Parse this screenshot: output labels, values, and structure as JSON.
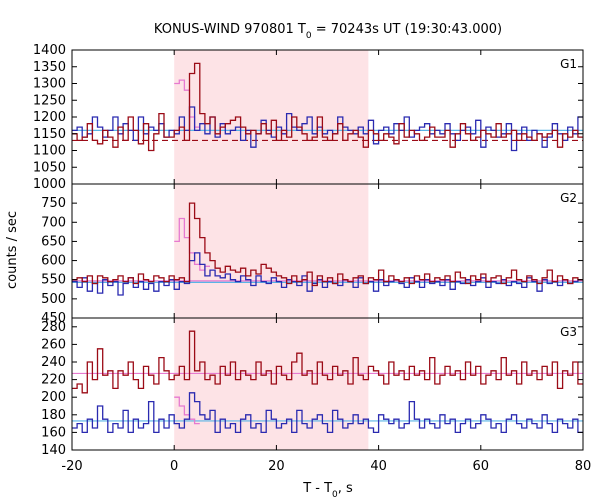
{
  "chart_data": {
    "type": "line",
    "title_main": "KONUS-WIND 970801 T",
    "title_sub": "0",
    "title_rest": " = 70243s UT (19:30:43.000)",
    "ylabel": "counts / sec",
    "xlabel_main": "T - T",
    "xlabel_sub": "0",
    "xlabel_rest": ", s",
    "xlim": [
      -20,
      80
    ],
    "x_ticks": [
      -20,
      0,
      20,
      40,
      60,
      80
    ],
    "shaded_interval": [
      0,
      38
    ],
    "colors": {
      "shade": "#fde3e6",
      "series_a": "#9b0b16",
      "series_b": "#2a2ab0",
      "pink": "#e67ad0",
      "cyan": "#5ab4e6"
    },
    "panels": [
      {
        "label": "G1",
        "ylim": [
          1000,
          1400
        ],
        "y_ticks": [
          1000,
          1050,
          1100,
          1150,
          1200,
          1250,
          1300,
          1350,
          1400
        ],
        "background_a": 1130,
        "background_b": 1160,
        "series": [
          {
            "values": [
              1150,
              1130,
              1140,
              1180,
              1130,
              1120,
              1160,
              1140,
              1110,
              1170,
              1130,
              1200,
              1160,
              1120,
              1180,
              1100,
              1150,
              1210,
              1140,
              1140,
              1160,
              1170,
              1130,
              1330,
              1360,
              1210,
              1180,
              1200,
              1150,
              1170,
              1180,
              1190,
              1200,
              1170,
              1150,
              1160,
              1150,
              1180,
              1150,
              1190,
              1130,
              1160,
              1140,
              1200,
              1170,
              1150,
              1130,
              1140,
              1200,
              1140,
              1130,
              1150,
              1180,
              1130,
              1150,
              1160,
              1140,
              1110,
              1160,
              1150,
              1130,
              1150,
              1140,
              1120,
              1180,
              1140,
              1160,
              1150,
              1130,
              1140,
              1170,
              1140,
              1140,
              1160,
              1110,
              1150,
              1180,
              1150,
              1130,
              1140,
              1160,
              1150,
              1140,
              1180,
              1140,
              1150,
              1160,
              1130,
              1150,
              1140,
              1130,
              1150,
              1140,
              1150,
              1160,
              1110,
              1150,
              1140,
              1160,
              1140
            ]
          },
          {
            "values": [
              1160,
              1170,
              1140,
              1150,
              1200,
              1170,
              1140,
              1160,
              1200,
              1150,
              1180,
              1160,
              1130,
              1200,
              1150,
              1170,
              1160,
              1180,
              1140,
              1160,
              1150,
              1200,
              1160,
              1230,
              1160,
              1180,
              1150,
              1200,
              1140,
              1180,
              1150,
              1160,
              1170,
              1130,
              1160,
              1110,
              1150,
              1190,
              1160,
              1140,
              1170,
              1150,
              1210,
              1170,
              1160,
              1180,
              1200,
              1150,
              1170,
              1150,
              1160,
              1150,
              1200,
              1170,
              1160,
              1150,
              1170,
              1150,
              1190,
              1120,
              1160,
              1170,
              1150,
              1180,
              1160,
              1200,
              1140,
              1160,
              1170,
              1180,
              1150,
              1160,
              1150,
              1180,
              1150,
              1130,
              1160,
              1170,
              1150,
              1190,
              1110,
              1170,
              1160,
              1140,
              1150,
              1180,
              1100,
              1150,
              1170,
              1130,
              1160,
              1150,
              1110,
              1140,
              1180,
              1150,
              1130,
              1170,
              1150,
              1200
            ]
          },
          {
            "values": [
              1300,
              1310,
              1280,
              1200,
              1170
            ]
          }
        ]
      },
      {
        "label": "G2",
        "ylim": [
          450,
          800
        ],
        "y_ticks": [
          450,
          500,
          550,
          600,
          650,
          700,
          750
        ],
        "background_a": 547,
        "background_b": 543,
        "series": [
          {
            "values": [
              550,
              555,
              545,
              560,
              540,
              560,
              555,
              545,
              550,
              560,
              545,
              555,
              540,
              565,
              550,
              545,
              560,
              555,
              545,
              560,
              550,
              555,
              545,
              750,
              710,
              660,
              620,
              600,
              580,
              570,
              585,
              575,
              570,
              580,
              560,
              575,
              565,
              590,
              580,
              570,
              560,
              555,
              540,
              560,
              545,
              550,
              570,
              535,
              560,
              545,
              555,
              540,
              565,
              550,
              545,
              555,
              560,
              540,
              555,
              550,
              575,
              545,
              560,
              550,
              545,
              555,
              540,
              560,
              550,
              565,
              545,
              555,
              550,
              560,
              545,
              570,
              555,
              540,
              560,
              550,
              565,
              545,
              555,
              560,
              540,
              555,
              575,
              550,
              545,
              560,
              550,
              540,
              555,
              575,
              545,
              560,
              550,
              540,
              555,
              550
            ]
          },
          {
            "values": [
              545,
              530,
              555,
              520,
              540,
              515,
              550,
              535,
              545,
              510,
              540,
              555,
              530,
              545,
              525,
              540,
              520,
              545,
              535,
              550,
              525,
              545,
              540,
              600,
              620,
              590,
              560,
              575,
              560,
              555,
              565,
              550,
              545,
              560,
              550,
              535,
              560,
              545,
              540,
              555,
              545,
              530,
              550,
              545,
              535,
              560,
              520,
              540,
              550,
              530,
              545,
              540,
              535,
              550,
              545,
              530,
              555,
              540,
              545,
              520,
              550,
              535,
              545,
              550,
              540,
              530,
              555,
              545,
              530,
              550,
              540,
              545,
              535,
              550,
              525,
              545,
              540,
              550,
              535,
              545,
              555,
              530,
              545,
              540,
              550,
              535,
              545,
              540,
              530,
              555,
              545,
              520,
              550,
              540,
              545,
              535,
              550,
              540,
              545,
              550
            ]
          },
          {
            "values": [
              650,
              710,
              660,
              620,
              590,
              575,
              585
            ]
          }
        ]
      },
      {
        "label": "G3",
        "ylim": [
          140,
          290
        ],
        "y_ticks": [
          140,
          160,
          180,
          200,
          220,
          240,
          260,
          280
        ],
        "background_a": 227,
        "background_b": 173,
        "series": [
          {
            "values": [
              210,
              215,
              205,
              240,
              220,
              255,
              225,
              230,
              210,
              230,
              225,
              240,
              220,
              210,
              235,
              225,
              215,
              245,
              230,
              220,
              225,
              235,
              220,
              275,
              230,
              240,
              220,
              225,
              215,
              235,
              225,
              240,
              220,
              230,
              225,
              220,
              240,
              225,
              230,
              215,
              235,
              225,
              220,
              240,
              250,
              225,
              230,
              215,
              240,
              225,
              220,
              235,
              225,
              230,
              215,
              245,
              225,
              220,
              235,
              230,
              225,
              215,
              240,
              225,
              230,
              220,
              235,
              225,
              230,
              220,
              245,
              215,
              225,
              235,
              225,
              230,
              220,
              240,
              225,
              235,
              215,
              225,
              230,
              220,
              245,
              225,
              230,
              215,
              240,
              225,
              230,
              220,
              235,
              225,
              240,
              210,
              230,
              225,
              240,
              215
            ]
          },
          {
            "values": [
              165,
              170,
              160,
              175,
              165,
              190,
              175,
              160,
              170,
              165,
              185,
              160,
              175,
              165,
              170,
              195,
              160,
              175,
              165,
              180,
              170,
              165,
              175,
              205,
              195,
              180,
              175,
              185,
              160,
              175,
              165,
              170,
              160,
              175,
              180,
              165,
              170,
              160,
              185,
              175,
              165,
              170,
              175,
              160,
              185,
              170,
              165,
              175,
              180,
              170,
              160,
              185,
              175,
              165,
              170,
              180,
              170,
              175,
              165,
              160,
              180,
              175,
              170,
              175,
              165,
              170,
              195,
              175,
              165,
              175,
              170,
              165,
              180,
              170,
              175,
              160,
              170,
              175,
              165,
              170,
              180,
              175,
              165,
              170,
              160,
              175,
              180,
              170,
              165,
              175,
              170,
              165,
              180,
              170,
              160,
              175,
              170,
              165,
              175,
              160
            ]
          },
          {
            "values": [
              200,
              190,
              180,
              175,
              170
            ]
          }
        ]
      }
    ]
  }
}
